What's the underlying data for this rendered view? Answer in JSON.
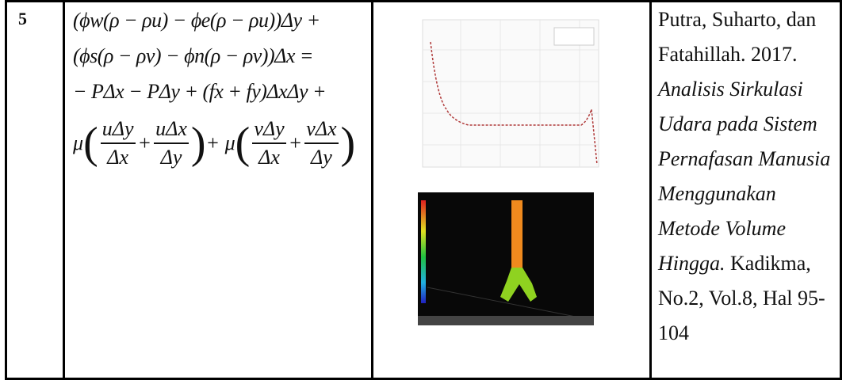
{
  "row": {
    "number": "5",
    "formula": {
      "lines": [
        "(ϕw(ρ − ρu) − ϕe(ρ − ρu))Δy +",
        "(ϕs(ρ − ρv) − ϕn(ρ − ρv))Δx =",
        "− PΔx − PΔy + (fx + fy)ΔxΔy +"
      ],
      "line4": [
        {
          "text": "μ"
        },
        {
          "text": "("
        },
        {
          "num": "uΔy",
          "den": "Δx"
        },
        {
          "text": "+"
        },
        {
          "num": "uΔx",
          "den": "Δy"
        },
        {
          "text": ")"
        },
        {
          "text": "+ μ"
        },
        {
          "text": "("
        },
        {
          "num": "vΔy",
          "den": "Δx"
        },
        {
          "text": "+"
        },
        {
          "num": "vΔx",
          "den": "Δy"
        },
        {
          "text": ")"
        }
      ]
    },
    "reference": {
      "authors": "Putra, Suharto, dan Fatahillah. 2017.",
      "title": "Analisis Sirkulasi Udara pada Sistem Pernafasan Manusia Menggunakan Metode Volume Hingga.",
      "source": "Kadikma, No.2, Vol.8, Hal 95-104"
    }
  }
}
